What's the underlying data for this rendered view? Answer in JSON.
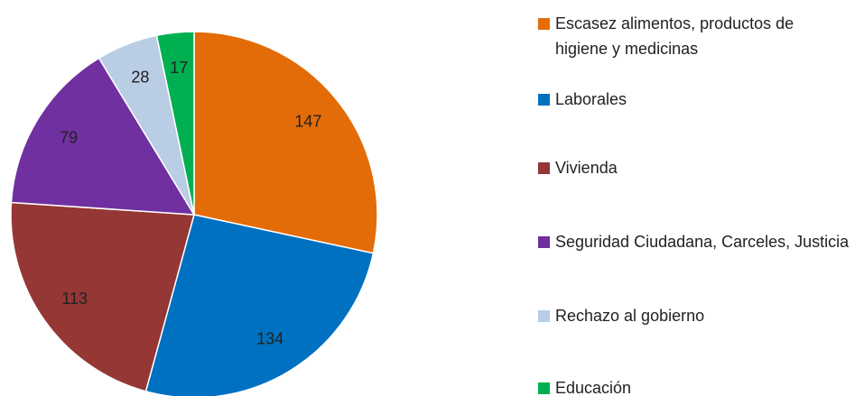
{
  "chart_data": {
    "type": "pie",
    "categories": [
      "Escasez alimentos, productos de higiene y medicinas",
      "Laborales",
      "Vivienda",
      "Seguridad Ciudadana, Carceles, Justicia",
      "Rechazo al gobierno",
      "Educación"
    ],
    "values": [
      147,
      134,
      113,
      79,
      28,
      17
    ],
    "colors": [
      "#E36C09",
      "#0070C0",
      "#953735",
      "#7030A0",
      "#B9CDE5",
      "#00B050"
    ],
    "legend": "right"
  }
}
